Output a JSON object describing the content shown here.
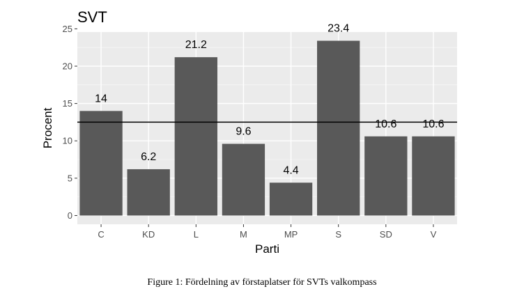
{
  "chart_data": {
    "type": "bar",
    "title": "SVT",
    "xlabel": "Parti",
    "ylabel": "Procent",
    "categories": [
      "C",
      "KD",
      "L",
      "M",
      "MP",
      "S",
      "SD",
      "V"
    ],
    "values": [
      14,
      6.2,
      21.2,
      9.6,
      4.4,
      23.4,
      10.6,
      10.6
    ],
    "data_labels": [
      "14",
      "6.2",
      "21.2",
      "9.6",
      "4.4",
      "23.4",
      "10.6",
      "10.6"
    ],
    "reference_line": 12.5,
    "ylim": [
      -1.17,
      24.57
    ],
    "yticks": [
      0,
      5,
      10,
      15,
      20,
      25
    ],
    "grid": true,
    "colors": {
      "bar": "#595959",
      "panel": "#ebebeb",
      "grid_major": "#ffffff",
      "grid_minor": "#f5f5f5",
      "hline": "#000000"
    }
  },
  "caption": "Figure 1: Fördelning av förstaplatser för SVTs valkompass"
}
